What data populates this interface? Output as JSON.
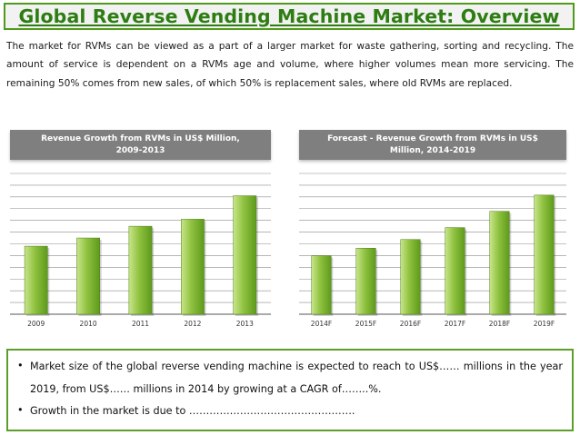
{
  "slide": {
    "title": "Global Reverse Vending Machine Market: Overview",
    "intro": "The market for RVMs can be viewed as a part of a larger market for waste gathering, sorting and recycling. The amount of service is dependent on a RVMs age and volume, where higher volumes mean more servicing. The remaining 50% comes from new sales, of which 50% is replacement sales, where old RVMs are replaced."
  },
  "bullets": [
    "Market size of the global reverse vending machine is expected to reach to US$…… millions in the year 2019, from US$…… millions in 2014 by growing at a CAGR of……..%.",
    "Growth in the market is due to …………………………………………."
  ],
  "bullet_marker": "•",
  "colors": {
    "title_green": "#2e7d12",
    "frame_green": "#4f9a19",
    "bar_light": "#c8e58a",
    "bar_dark": "#5e9a1c",
    "header_gray": "#7f7f7f",
    "gridline": "#8c8c8c"
  },
  "chart_data": [
    {
      "type": "bar",
      "title": "Revenue Growth from RVMs in US$ Million, 2009-2013",
      "categories": [
        "2009",
        "2010",
        "2011",
        "2012",
        "2013"
      ],
      "values": [
        58,
        65,
        75,
        81,
        101
      ],
      "ylim": [
        0,
        120
      ],
      "grid": true,
      "xlabel": "",
      "ylabel": ""
    },
    {
      "type": "bar",
      "title": "Forecast - Revenue Growth from RVMs in US$ Million, 2014-2019",
      "categories": [
        "2014F",
        "2015F",
        "2016F",
        "2017F",
        "2018F",
        "2019F"
      ],
      "values": [
        54,
        61,
        69,
        80,
        95,
        110
      ],
      "ylim": [
        0,
        130
      ],
      "grid": true,
      "xlabel": "",
      "ylabel": ""
    }
  ]
}
